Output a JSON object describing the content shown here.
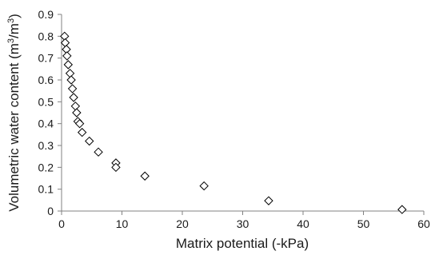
{
  "chart_data": {
    "type": "scatter",
    "xlabel": "Matrix potential (-kPa)",
    "ylabel_main": "Volumetric water content (m",
    "ylabel_mid": "/m",
    "ylabel_sup": "3",
    "ylabel_end": ")",
    "xlim": [
      0,
      60
    ],
    "ylim": [
      0,
      0.9
    ],
    "x_ticks": [
      "0",
      "10",
      "20",
      "30",
      "40",
      "50",
      "60"
    ],
    "y_ticks": [
      "0",
      "0.1",
      "0.2",
      "0.3",
      "0.4",
      "0.5",
      "0.6",
      "0.7",
      "0.8",
      "0.9"
    ],
    "marker": "diamond-open",
    "grid": false,
    "series": [
      {
        "x": [
          0.5,
          0.6,
          0.8,
          0.9,
          1.1,
          1.4,
          1.6,
          1.8,
          2.0,
          2.3,
          2.5,
          2.7,
          3.0,
          3.4,
          4.6,
          6.1,
          9.0,
          9.0,
          13.8,
          23.6,
          34.3,
          56.4
        ],
        "y": [
          0.8,
          0.77,
          0.74,
          0.71,
          0.67,
          0.63,
          0.6,
          0.56,
          0.52,
          0.48,
          0.45,
          0.41,
          0.4,
          0.36,
          0.32,
          0.27,
          0.22,
          0.2,
          0.16,
          0.115,
          0.047,
          0.007
        ]
      }
    ]
  }
}
